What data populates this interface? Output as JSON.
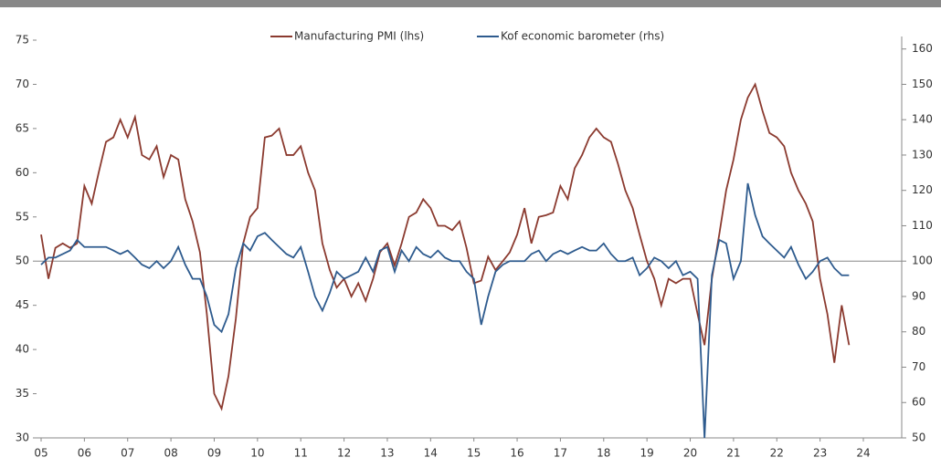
{
  "chart_data": {
    "type": "line",
    "legend": "top",
    "x": [
      2005,
      2005.17,
      2005.33,
      2005.5,
      2005.67,
      2005.83,
      2006,
      2006.17,
      2006.33,
      2006.5,
      2006.67,
      2006.83,
      2007,
      2007.17,
      2007.33,
      2007.5,
      2007.67,
      2007.83,
      2008,
      2008.17,
      2008.33,
      2008.5,
      2008.67,
      2008.83,
      2009,
      2009.17,
      2009.33,
      2009.5,
      2009.67,
      2009.83,
      2010,
      2010.17,
      2010.33,
      2010.5,
      2010.67,
      2010.83,
      2011,
      2011.17,
      2011.33,
      2011.5,
      2011.67,
      2011.83,
      2012,
      2012.17,
      2012.33,
      2012.5,
      2012.67,
      2012.83,
      2013,
      2013.17,
      2013.33,
      2013.5,
      2013.67,
      2013.83,
      2014,
      2014.17,
      2014.33,
      2014.5,
      2014.67,
      2014.83,
      2015,
      2015.17,
      2015.33,
      2015.5,
      2015.67,
      2015.83,
      2016,
      2016.17,
      2016.33,
      2016.5,
      2016.67,
      2016.83,
      2017,
      2017.17,
      2017.33,
      2017.5,
      2017.67,
      2017.83,
      2018,
      2018.17,
      2018.33,
      2018.5,
      2018.67,
      2018.83,
      2019,
      2019.17,
      2019.33,
      2019.5,
      2019.67,
      2019.83,
      2020,
      2020.17,
      2020.33,
      2020.5,
      2020.67,
      2020.83,
      2021,
      2021.17,
      2021.33,
      2021.5,
      2021.67,
      2021.83,
      2022,
      2022.17,
      2022.33,
      2022.5,
      2022.67,
      2022.83,
      2023,
      2023.17,
      2023.33,
      2023.5,
      2023.67
    ],
    "series": [
      {
        "name": "Manufacturing PMI (lhs)",
        "color": "#8b3a2f",
        "axis": "y",
        "values": [
          53,
          48,
          51.5,
          52,
          51.5,
          52,
          58.5,
          56.5,
          60,
          63.5,
          64,
          66,
          64,
          66.3,
          62,
          61.5,
          63,
          59.5,
          62,
          61.5,
          57,
          54.5,
          51,
          44,
          35,
          33.3,
          37,
          43.5,
          52,
          55,
          56,
          64,
          64.2,
          65,
          62,
          62,
          63,
          60,
          58,
          52,
          49,
          47,
          48,
          46,
          47.5,
          45.5,
          48,
          51,
          52,
          49.5,
          52,
          55,
          55.5,
          57,
          56,
          54,
          54,
          53.5,
          54.5,
          51.5,
          47.5,
          47.8,
          50.5,
          49,
          50,
          51,
          53,
          56,
          52,
          55,
          55.2,
          55.5,
          58.5,
          57,
          60.5,
          62,
          64,
          65,
          64,
          63.5,
          61,
          58,
          56,
          53,
          50,
          48,
          45,
          48,
          47.5,
          48,
          48,
          44,
          40.5,
          48,
          53,
          58,
          61.5,
          66,
          68.5,
          70,
          67,
          64.5,
          64,
          63,
          60,
          58,
          56.5,
          54.5,
          48,
          44,
          38.5,
          45,
          40.5
        ]
      },
      {
        "name": "Kof economic barometer (rhs)",
        "color": "#2e5b8e",
        "axis": "y2",
        "values": [
          99,
          101,
          101,
          102,
          103,
          106,
          104,
          104,
          104,
          104,
          103,
          102,
          103,
          101,
          99,
          98,
          100,
          98,
          100,
          104,
          99,
          95,
          95,
          90,
          82,
          80,
          85,
          98,
          105,
          103,
          107,
          108,
          106,
          104,
          102,
          101,
          104,
          97,
          90,
          86,
          91,
          97,
          95,
          96,
          97,
          101,
          97,
          103,
          104,
          97,
          103,
          100,
          104,
          102,
          101,
          103,
          101,
          100,
          100,
          97,
          95,
          82,
          90,
          97,
          99,
          100,
          100,
          100,
          102,
          103,
          100,
          102,
          103,
          102,
          103,
          104,
          103,
          103,
          105,
          102,
          100,
          100,
          101,
          96,
          98,
          101,
          100,
          98,
          100,
          96,
          97,
          95,
          50,
          96,
          106,
          105,
          95,
          100,
          122,
          113,
          107,
          105,
          103,
          101,
          104,
          99,
          95,
          97,
          100,
          101,
          98,
          96,
          96
        ]
      }
    ],
    "xlim": [
      2005,
      2024
    ],
    "xticks": [
      {
        "value": 2005,
        "label": "05"
      },
      {
        "value": 2006,
        "label": "06"
      },
      {
        "value": 2007,
        "label": "07"
      },
      {
        "value": 2008,
        "label": "08"
      },
      {
        "value": 2009,
        "label": "09"
      },
      {
        "value": 2010,
        "label": "10"
      },
      {
        "value": 2011,
        "label": "11"
      },
      {
        "value": 2012,
        "label": "12"
      },
      {
        "value": 2013,
        "label": "13"
      },
      {
        "value": 2014,
        "label": "14"
      },
      {
        "value": 2015,
        "label": "15"
      },
      {
        "value": 2016,
        "label": "16"
      },
      {
        "value": 2017,
        "label": "17"
      },
      {
        "value": 2018,
        "label": "18"
      },
      {
        "value": 2019,
        "label": "19"
      },
      {
        "value": 2020,
        "label": "20"
      },
      {
        "value": 2021,
        "label": "21"
      },
      {
        "value": 2022,
        "label": "22"
      },
      {
        "value": 2023,
        "label": "23"
      },
      {
        "value": 2024,
        "label": "24"
      }
    ],
    "ylim": [
      30,
      75
    ],
    "yticks": [
      30,
      35,
      40,
      45,
      50,
      55,
      60,
      65,
      70,
      75
    ],
    "y2lim": [
      50,
      162.5
    ],
    "y2ticks": [
      50,
      60,
      70,
      80,
      90,
      100,
      110,
      120,
      130,
      140,
      150,
      160
    ],
    "reference_line": 50
  }
}
